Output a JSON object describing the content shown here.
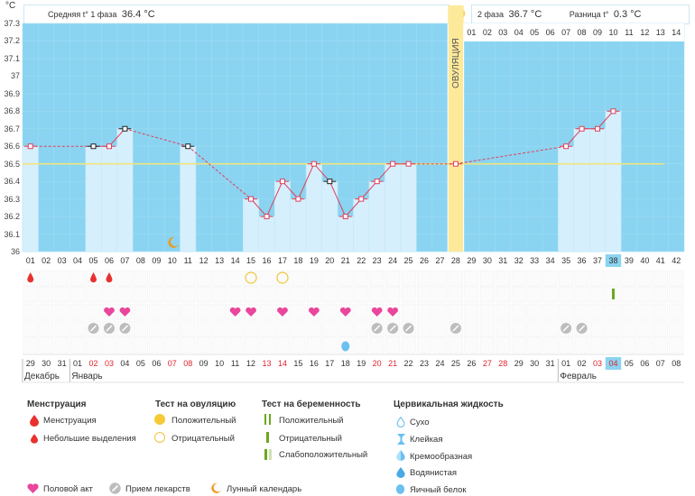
{
  "unit": "°C",
  "header": {
    "phase1_label": "Средняя t° 1 фаза",
    "phase1_value": "36.4 °C",
    "phase2_label": "2 фаза",
    "phase2_value": "36.7 °C",
    "diff_label": "Разница t°",
    "diff_value": "0.3 °C"
  },
  "ovulation_label": "ОВУЛЯЦИЯ",
  "colors": {
    "plot_bg": "#8ad4f1",
    "bar_fill": "#d6effd",
    "ovulation_band": "#fde99a",
    "line": "#e0405a",
    "coverline": "#f1e47a",
    "menstruation": "#e8312f",
    "heart": "#e9469c",
    "pill": "#bdbdbd",
    "test_ovulation": "#f2c43b",
    "test_pregnancy": "#6aa81e",
    "cervical": "#6cc0f0"
  },
  "chart_data": {
    "type": "bar",
    "ylim": [
      36.0,
      37.3
    ],
    "yticks": [
      "37.3",
      "37.2",
      "37.1",
      "37",
      "36.9",
      "36.8",
      "36.7",
      "36.6",
      "36.5",
      "36.4",
      "36.3",
      "36.2",
      "36.1",
      "36"
    ],
    "coverline": 36.5,
    "cycle_days": [
      "01",
      "02",
      "03",
      "04",
      "05",
      "06",
      "07",
      "08",
      "09",
      "10",
      "11",
      "12",
      "13",
      "14",
      "15",
      "16",
      "17",
      "18",
      "19",
      "20",
      "21",
      "22",
      "23",
      "24",
      "25",
      "26",
      "27",
      "28",
      "29",
      "30",
      "31",
      "32",
      "33",
      "34",
      "35",
      "36",
      "37",
      "38",
      "39",
      "40",
      "41",
      "42"
    ],
    "ovulation_day_index": 27,
    "temperatures": [
      36.6,
      null,
      null,
      null,
      36.6,
      36.6,
      36.7,
      null,
      null,
      null,
      36.6,
      null,
      null,
      null,
      36.3,
      36.2,
      36.4,
      36.3,
      36.5,
      36.4,
      36.2,
      36.3,
      36.4,
      36.5,
      36.5,
      null,
      null,
      36.5,
      null,
      null,
      null,
      null,
      null,
      null,
      36.6,
      36.7,
      36.7,
      36.8,
      null,
      null,
      null,
      null
    ],
    "marker_style": [
      "pink",
      null,
      null,
      null,
      "black",
      "pink",
      "black",
      null,
      null,
      null,
      "black",
      null,
      null,
      null,
      "pink",
      "pink",
      "pink",
      "pink",
      "pink",
      "black",
      "pink",
      "pink",
      "pink",
      "pink",
      "pink",
      null,
      null,
      "pink",
      null,
      null,
      null,
      null,
      null,
      null,
      "pink",
      "pink",
      "pink",
      "pink",
      null,
      null,
      null,
      null
    ],
    "plot_header_days": [
      "01",
      "02",
      "03",
      "04",
      "05",
      "06",
      "07",
      "08",
      "09",
      "10",
      "11",
      "12",
      "13",
      "14"
    ],
    "post_ovulation_start_index": 28,
    "highlight_cycle_day_index": 37,
    "calendar_dates": [
      "29",
      "30",
      "31",
      "01",
      "02",
      "03",
      "04",
      "05",
      "06",
      "07",
      "08",
      "09",
      "10",
      "11",
      "12",
      "13",
      "14",
      "15",
      "16",
      "17",
      "18",
      "19",
      "20",
      "21",
      "22",
      "23",
      "24",
      "25",
      "26",
      "27",
      "28",
      "29",
      "30",
      "31",
      "01",
      "02",
      "03",
      "04",
      "05",
      "06",
      "07",
      "08"
    ],
    "red_date_indices": [
      4,
      5,
      9,
      10,
      15,
      16,
      22,
      23,
      29,
      30,
      36,
      37
    ],
    "highlight_date_index": 37,
    "months": [
      {
        "label": "Декабрь",
        "start_index": 0
      },
      {
        "label": "Январь",
        "start_index": 3
      },
      {
        "label": "Февраль",
        "start_index": 34
      }
    ],
    "markers": {
      "menstruation": [
        0,
        4,
        5
      ],
      "ovulation_test_negative": [
        14,
        16
      ],
      "pregnancy_test": [
        37
      ],
      "intercourse": [
        5,
        6,
        13,
        14,
        16,
        18,
        20,
        22,
        23
      ],
      "medication": [
        4,
        5,
        6,
        22,
        23,
        24,
        27,
        34,
        35
      ],
      "cervical_white": [
        20
      ]
    }
  },
  "legend": {
    "menstruation_title": "Менструация",
    "menstruation_items": [
      "Менструация",
      "Небольшие выделения"
    ],
    "ovulation_test_title": "Тест на овуляцию",
    "ovulation_test_items": [
      "Положительный",
      "Отрицательный"
    ],
    "pregnancy_test_title": "Тест на беременность",
    "pregnancy_test_items": [
      "Положительный",
      "Отрицательный",
      "Слабоположительный"
    ],
    "cervical_title": "Цервикальная жидкость",
    "cervical_items": [
      "Сухо",
      "Клейкая",
      "Кремообразная",
      "Водянистая",
      "Яичный белок"
    ],
    "bottom_items": [
      "Половой акт",
      "Прием лекарств",
      "Лунный календарь"
    ]
  }
}
